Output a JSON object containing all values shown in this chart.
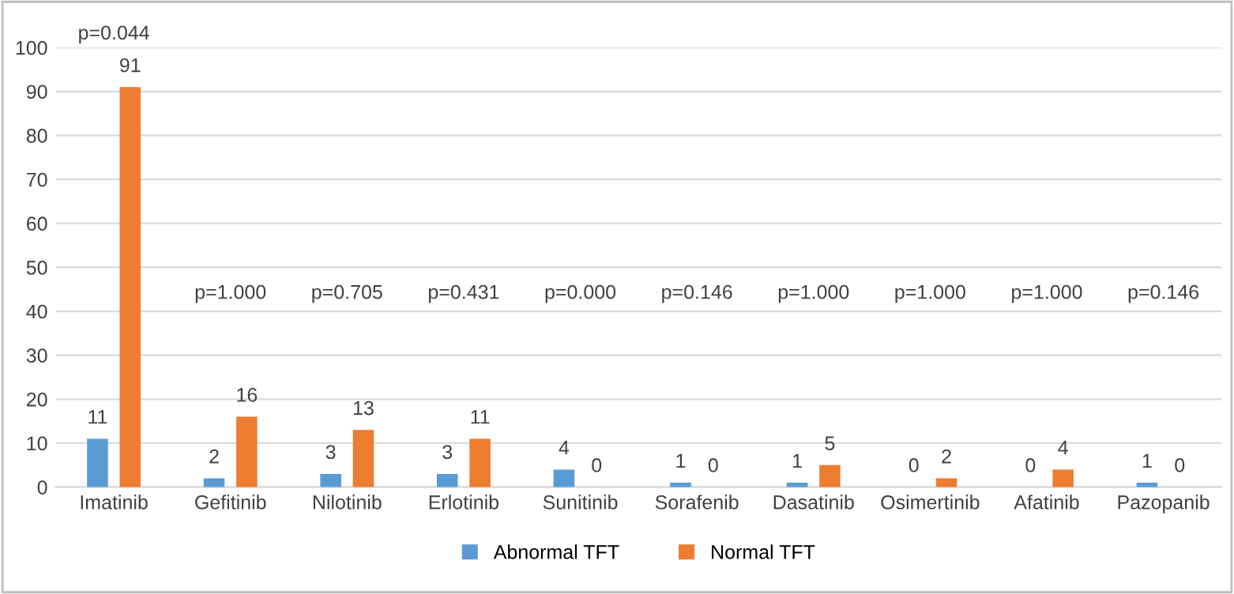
{
  "chart_data": {
    "type": "bar",
    "categories": [
      "Imatinib",
      "Gefitinib",
      "Nilotinib",
      "Erlotinib",
      "Sunitinib",
      "Sorafenib",
      "Dasatinib",
      "Osimertinib",
      "Afatinib",
      "Pazopanib"
    ],
    "series": [
      {
        "name": "Abnormal TFT",
        "color": "#5b9bd5",
        "values": [
          11,
          2,
          3,
          3,
          4,
          1,
          1,
          0,
          0,
          1
        ]
      },
      {
        "name": "Normal TFT",
        "color": "#ed7d31",
        "values": [
          91,
          16,
          13,
          11,
          0,
          0,
          5,
          2,
          4,
          0
        ]
      }
    ],
    "ylim": [
      0,
      100
    ],
    "yticks": [
      0,
      10,
      20,
      30,
      40,
      50,
      60,
      70,
      80,
      90,
      100
    ],
    "grid": "y",
    "legend": "bottom",
    "data_labels": true,
    "annotations": [
      "p=0.044",
      "p=1.000",
      "p=0.705",
      "p=0.431",
      "p=0.000",
      "p=0.146",
      "p=1.000",
      "p=1.000",
      "p=1.000",
      "p=0.146"
    ]
  }
}
